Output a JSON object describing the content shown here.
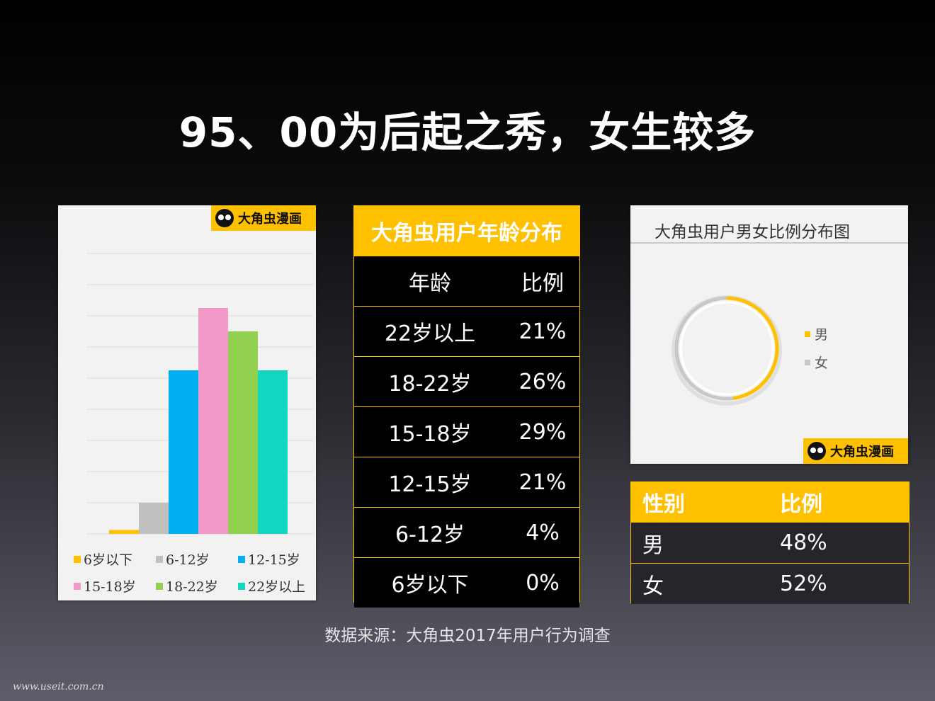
{
  "title": "95、00为后起之秀，女生较多",
  "logo_text": "大角虫漫画",
  "colors": {
    "accent": "#ffc000",
    "series": [
      "#ffc000",
      "#c0c0c0",
      "#00b0f0",
      "#f49ac8",
      "#92d050",
      "#13d6c0"
    ]
  },
  "chart_data": [
    {
      "type": "bar",
      "categories": [
        "6岁以下",
        "6-12岁",
        "12-15岁",
        "15-18岁",
        "18-22岁",
        "22岁以上"
      ],
      "values": [
        0.5,
        4,
        21,
        29,
        26,
        21
      ],
      "legend": [
        "6岁以下",
        "6-12岁",
        "12-15岁",
        "15-18岁",
        "18-22岁",
        "22岁以上"
      ],
      "ylim": [
        0,
        36
      ],
      "grid": true,
      "legend_position": "bottom"
    },
    {
      "type": "pie",
      "title": "大角虫用户男女比例分布图",
      "labels": [
        "男",
        "女"
      ],
      "values": [
        48,
        52
      ],
      "colors": [
        "#ffc000",
        "#c8c8c8"
      ],
      "legend_position": "right"
    }
  ],
  "age_table": {
    "title": "大角虫用户年龄分布",
    "headers": [
      "年龄",
      "比例"
    ],
    "rows": [
      [
        "22岁以上",
        "21%"
      ],
      [
        "18-22岁",
        "26%"
      ],
      [
        "15-18岁",
        "29%"
      ],
      [
        "12-15岁",
        "21%"
      ],
      [
        "6-12岁",
        "4%"
      ],
      [
        "6岁以下",
        "0%"
      ]
    ]
  },
  "gender_table": {
    "headers": [
      "性别",
      "比例"
    ],
    "rows": [
      [
        "男",
        "48%"
      ],
      [
        "女",
        "52%"
      ]
    ]
  },
  "source": "数据来源：大角虫2017年用户行为调查",
  "watermark": "www.useit.com.cn"
}
